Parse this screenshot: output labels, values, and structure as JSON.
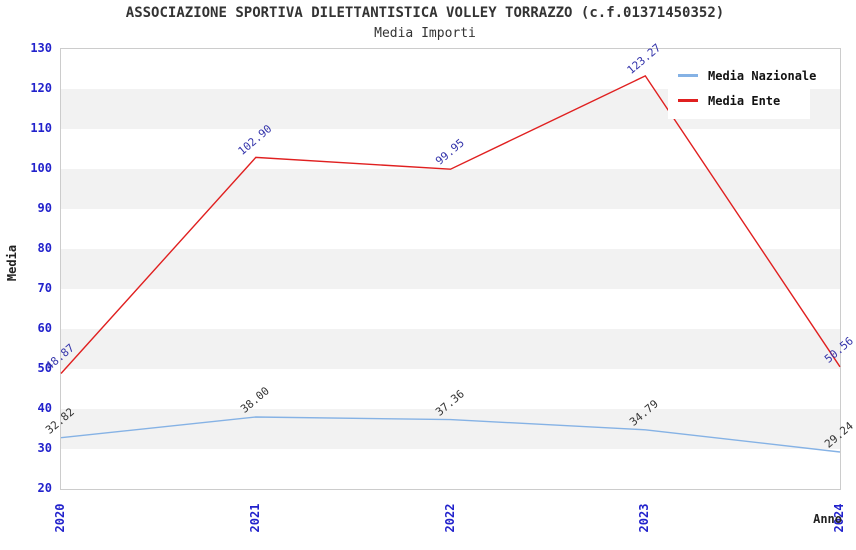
{
  "header": {
    "title": "ASSOCIAZIONE SPORTIVA DILETTANTISTICA VOLLEY TORRAZZO (c.f.01371450352)",
    "subtitle": "Media Importi"
  },
  "chart_data": {
    "type": "line",
    "categories": [
      "2020",
      "2021",
      "2022",
      "2023",
      "2024"
    ],
    "series": [
      {
        "name": "Media Nazionale",
        "color": "#85b2e5",
        "label_color": "#333333",
        "values": [
          32.82,
          38.0,
          37.36,
          34.79,
          29.24
        ],
        "point_labels": [
          "32.82",
          "38.00",
          "37.36",
          "34.79",
          "29.24"
        ]
      },
      {
        "name": "Media Ente",
        "color": "#e02020",
        "label_color": "#3333aa",
        "values": [
          48.87,
          102.9,
          99.95,
          123.27,
          50.56
        ],
        "point_labels": [
          "48.87",
          "102.90",
          "99.95",
          "123.27",
          "50.56"
        ]
      }
    ],
    "title": "ASSOCIAZIONE SPORTIVA DILETTANTISTICA VOLLEY TORRAZZO (c.f.01371450352)",
    "subtitle": "Media Importi",
    "xlabel": "Anno",
    "ylabel": "Media",
    "ylim": [
      20,
      130
    ],
    "y_tick_labels": [
      "130",
      "120",
      "110",
      "100",
      "90",
      "80",
      "70",
      "60",
      "50",
      "40",
      "30",
      "20"
    ],
    "x_tick_labels": [
      "2020",
      "2021",
      "2022",
      "2023",
      "2024"
    ],
    "grid": "alternating-horizontal-bands",
    "band_colors": [
      "#ffffff",
      "#f2f2f2"
    ],
    "tick_label_color": "#2222cc",
    "legend_position": "top-right",
    "legend_entries": [
      "Media Nazionale",
      "Media Ente"
    ]
  }
}
